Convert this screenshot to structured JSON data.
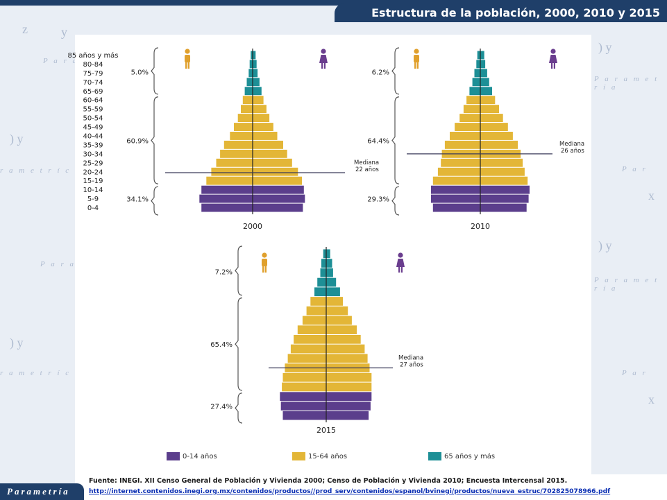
{
  "header": {
    "title": "Estructura de la población, 2000, 2010 y 2015"
  },
  "brand": {
    "logo_text": "Parametría"
  },
  "colors": {
    "child": "#5b3e8c",
    "adult": "#e3b637",
    "senior": "#1d8f96",
    "header_bg": "#1f3f69",
    "icon_male": "#e0a02c",
    "icon_female": "#6a3d8e"
  },
  "footer": {
    "source": "Fuente: INEGI. XII Censo General de Población y Vivienda 2000; Censo de Población y Vivienda 2010; Encuesta Intercensal 2015.",
    "url": "http://internet.contenidos.inegi.org.mx/contenidos/productos//prod_serv/contenidos/espanol/bvinegi/productos/nueva_estruc/702825078966.pdf"
  },
  "chart_data": {
    "type": "population-pyramid",
    "age_groups": [
      "85 años y más",
      "80-84",
      "75-79",
      "70-74",
      "65-69",
      "60-64",
      "55-59",
      "50-54",
      "45-49",
      "40-44",
      "35-39",
      "30-34",
      "25-29",
      "20-24",
      "15-19",
      "10-14",
      "5-9",
      "0-4"
    ],
    "legend": [
      {
        "label": "0-14 años",
        "group": "child"
      },
      {
        "label": "15-64 años",
        "group": "adult"
      },
      {
        "label": "65 años y más",
        "group": "senior"
      }
    ],
    "median_label": "Mediana",
    "pyramids": [
      {
        "year": "2000",
        "pct_senior": "5.0%",
        "pct_adult": "60.9%",
        "pct_child": "34.1%",
        "median": "22 años",
        "male": [
          0.2,
          0.3,
          0.4,
          0.6,
          0.8,
          1.0,
          1.2,
          1.5,
          1.9,
          2.3,
          2.9,
          3.3,
          3.7,
          4.2,
          4.7,
          5.2,
          5.4,
          5.2
        ],
        "female": [
          0.3,
          0.4,
          0.5,
          0.7,
          0.9,
          1.1,
          1.4,
          1.7,
          2.1,
          2.5,
          3.1,
          3.5,
          4.0,
          4.6,
          5.0,
          5.2,
          5.3,
          5.1
        ]
      },
      {
        "year": "2010",
        "pct_senior": "6.2%",
        "pct_adult": "64.4%",
        "pct_child": "29.3%",
        "median": "26 años",
        "male": [
          0.3,
          0.4,
          0.6,
          0.8,
          1.1,
          1.4,
          1.7,
          2.1,
          2.6,
          3.1,
          3.6,
          3.9,
          4.0,
          4.3,
          4.8,
          5.0,
          5.0,
          4.8
        ],
        "female": [
          0.4,
          0.5,
          0.7,
          0.9,
          1.2,
          1.5,
          1.9,
          2.3,
          2.8,
          3.3,
          3.8,
          4.1,
          4.3,
          4.5,
          4.8,
          5.0,
          4.9,
          4.7
        ]
      },
      {
        "year": "2015",
        "pct_senior": "7.2%",
        "pct_adult": "65.4%",
        "pct_child": "27.4%",
        "median": "27 años",
        "male": [
          0.3,
          0.5,
          0.6,
          0.9,
          1.2,
          1.6,
          2.0,
          2.4,
          2.9,
          3.3,
          3.6,
          3.9,
          4.2,
          4.4,
          4.5,
          4.7,
          4.6,
          4.4
        ],
        "female": [
          0.4,
          0.6,
          0.7,
          1.0,
          1.4,
          1.7,
          2.2,
          2.6,
          3.1,
          3.5,
          3.9,
          4.2,
          4.4,
          4.6,
          4.6,
          4.6,
          4.5,
          4.3
        ]
      }
    ]
  }
}
